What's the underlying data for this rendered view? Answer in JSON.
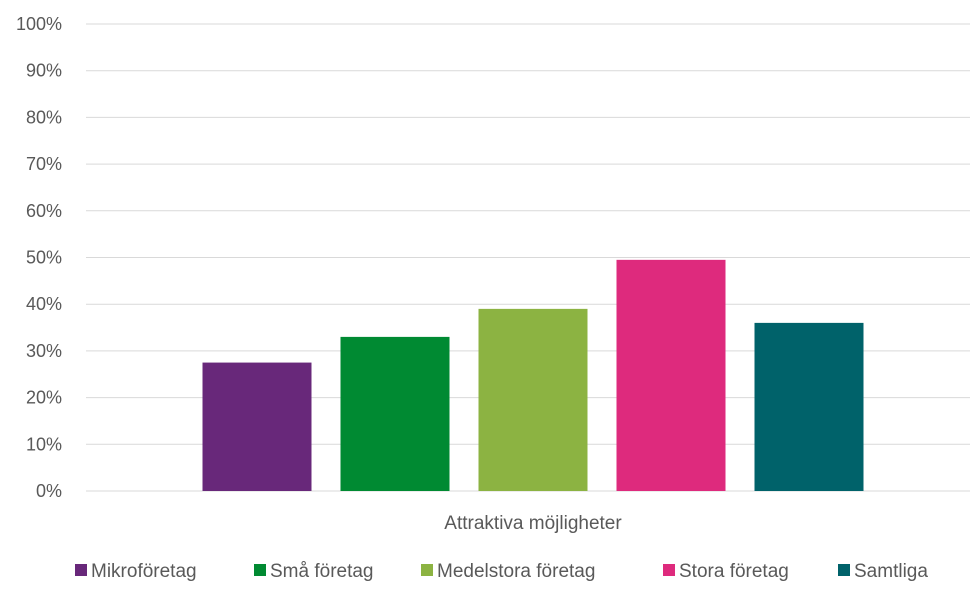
{
  "chart_data": {
    "type": "bar",
    "title": "",
    "xlabel": "",
    "ylabel": "",
    "categories": [
      "Attraktiva möjligheter"
    ],
    "series": [
      {
        "name": "Mikroföretag",
        "values": [
          0.275
        ],
        "color": "#68287A"
      },
      {
        "name": "Små företag",
        "values": [
          0.33
        ],
        "color": "#008A32"
      },
      {
        "name": "Medelstora företag",
        "values": [
          0.39
        ],
        "color": "#8CB342"
      },
      {
        "name": "Stora företag",
        "values": [
          0.495
        ],
        "color": "#DE2A7D"
      },
      {
        "name": "Samtliga",
        "values": [
          0.36
        ],
        "color": "#00626A"
      }
    ],
    "ylim": [
      0,
      1
    ],
    "yticks": [
      "0%",
      "10%",
      "20%",
      "30%",
      "40%",
      "50%",
      "60%",
      "70%",
      "80%",
      "90%",
      "100%"
    ],
    "grid": true,
    "gridline_color": "#D9D9D9",
    "legend_position": "bottom"
  }
}
